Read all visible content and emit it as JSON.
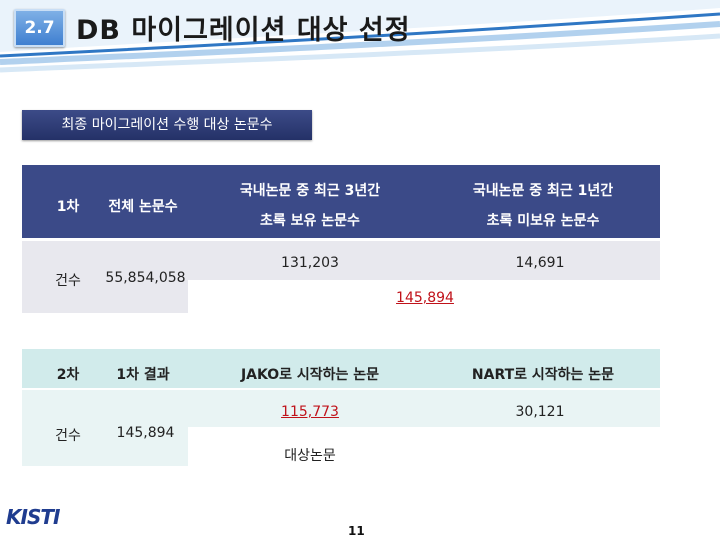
{
  "header": {
    "section_number": "2.7",
    "title": "DB 마이그레이션 대상 선정"
  },
  "section_label": "최종 마이그레이션 수행 대상 논문수",
  "table1": {
    "header": {
      "stage": "1차",
      "total": "전체 논문수",
      "domestic_3y_line1": "국내논문 중 최근 3년간",
      "domestic_3y_line2": "초록 보유 논문수",
      "domestic_1y_line1": "국내논문 중 최근 1년간",
      "domestic_1y_line2": "초록 미보유 논문수"
    },
    "row": {
      "label": "건수",
      "total": "55,854,058",
      "domestic_3y": "131,203",
      "domestic_1y": "14,691",
      "sum": "145,894"
    }
  },
  "table2": {
    "header": {
      "stage": "2차",
      "result": "1차 결과",
      "jako": "JAKO로 시작하는 논문",
      "nart": "NART로 시작하는 논문"
    },
    "row": {
      "label": "건수",
      "result": "145,894",
      "jako": "115,773",
      "nart": "30,121",
      "target_label": "대상논문"
    }
  },
  "footer": {
    "logo_text": "KISTI",
    "page_number": "11"
  },
  "colors": {
    "table1_header": "#3b4a88",
    "table2_header": "#d1ebeb",
    "highlight": "#c0121a"
  }
}
